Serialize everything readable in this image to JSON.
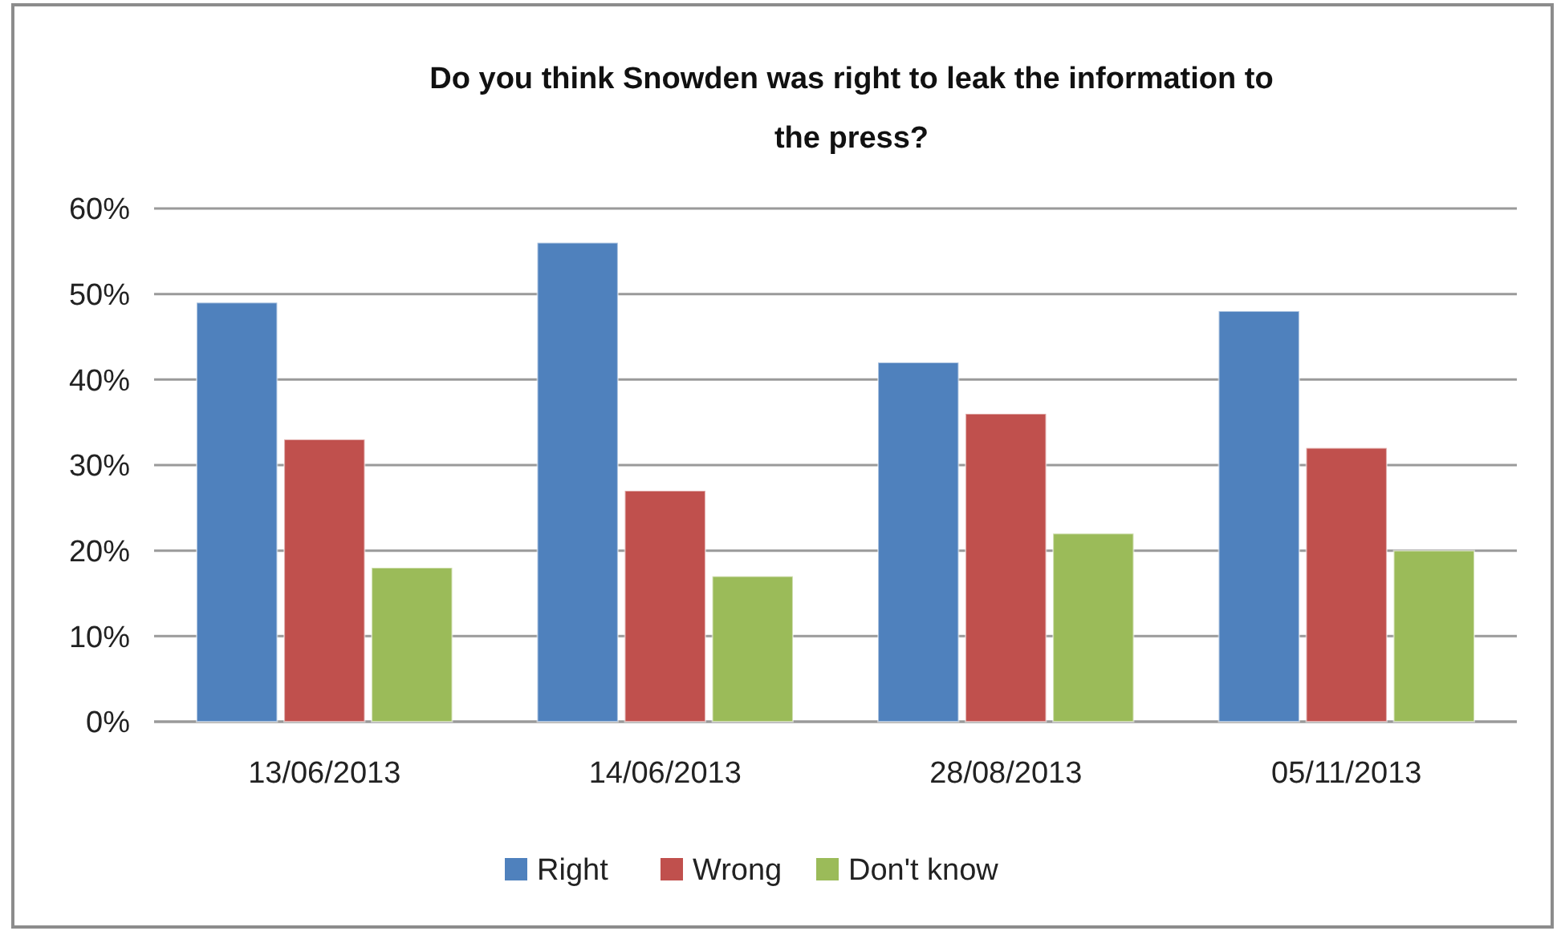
{
  "chart_data": {
    "type": "bar",
    "title": "Do you think Snowden was right to leak the information to the press?",
    "categories": [
      "13/06/2013",
      "14/06/2013",
      "28/08/2013",
      "05/11/2013"
    ],
    "series": [
      {
        "name": "Right",
        "color": "#4f81bd",
        "values": [
          49,
          56,
          42,
          48
        ]
      },
      {
        "name": "Wrong",
        "color": "#c0504d",
        "values": [
          33,
          27,
          36,
          32
        ]
      },
      {
        "name": "Don't know",
        "color": "#9bbb59",
        "values": [
          18,
          17,
          22,
          20
        ]
      }
    ],
    "ylim": [
      0,
      60
    ],
    "yticks": [
      {
        "value": 0,
        "label": "0%"
      },
      {
        "value": 10,
        "label": "10%"
      },
      {
        "value": 20,
        "label": "20%"
      },
      {
        "value": 30,
        "label": "30%"
      },
      {
        "value": 40,
        "label": "40%"
      },
      {
        "value": 50,
        "label": "50%"
      },
      {
        "value": 60,
        "label": "60%"
      }
    ],
    "grid": "y",
    "legend": "bottom"
  }
}
